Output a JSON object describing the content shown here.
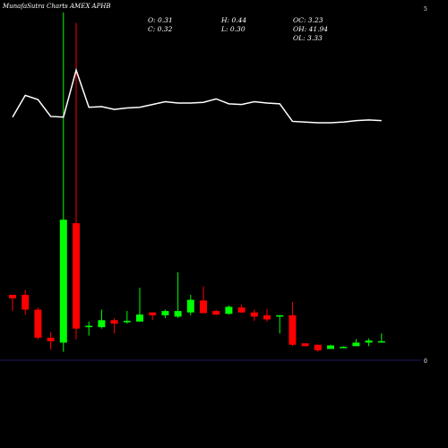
{
  "header": {
    "title": "MunafaSutra Charts AMEX APHB",
    "open": "O: 0.31",
    "close": "C: 0.32",
    "high": "H: 0.44",
    "low": "L: 0.30",
    "oc": "OC: 3.23",
    "oh": "OH: 41.94",
    "ol": "OL: 3.33"
  },
  "colors": {
    "background": "#000000",
    "up": "#00ff00",
    "down": "#ff0000",
    "line": "#ffffff",
    "axis": "#1a1a66"
  },
  "chart_data": {
    "type": "candlestick",
    "ylim": [
      0,
      5
    ],
    "yticks": [
      "5",
      "0"
    ],
    "candles": [
      {
        "dir": "down",
        "open": 0.93,
        "close": 0.88,
        "high": 0.93,
        "low": 0.7
      },
      {
        "dir": "down",
        "open": 0.93,
        "close": 0.72,
        "high": 1.0,
        "low": 0.65
      },
      {
        "dir": "down",
        "open": 0.72,
        "close": 0.32,
        "high": 0.75,
        "low": 0.3
      },
      {
        "dir": "down",
        "open": 0.32,
        "close": 0.27,
        "high": 0.4,
        "low": 0.15
      },
      {
        "dir": "up",
        "open": 0.25,
        "close": 2.0,
        "high": 4.95,
        "low": 0.12
      },
      {
        "dir": "down",
        "open": 1.95,
        "close": 0.45,
        "high": 4.8,
        "low": 0.3
      },
      {
        "dir": "up",
        "open": 0.47,
        "close": 0.49,
        "high": 0.55,
        "low": 0.35
      },
      {
        "dir": "up",
        "open": 0.47,
        "close": 0.57,
        "high": 0.72,
        "low": 0.45
      },
      {
        "dir": "down",
        "open": 0.57,
        "close": 0.52,
        "high": 0.6,
        "low": 0.38
      },
      {
        "dir": "up",
        "open": 0.54,
        "close": 0.56,
        "high": 0.7,
        "low": 0.52
      },
      {
        "dir": "up",
        "open": 0.55,
        "close": 0.65,
        "high": 1.03,
        "low": 0.55
      },
      {
        "dir": "down",
        "open": 0.68,
        "close": 0.64,
        "high": 0.68,
        "low": 0.57
      },
      {
        "dir": "up",
        "open": 0.64,
        "close": 0.7,
        "high": 0.72,
        "low": 0.6
      },
      {
        "dir": "up",
        "open": 0.62,
        "close": 0.7,
        "high": 1.25,
        "low": 0.6
      },
      {
        "dir": "up",
        "open": 0.68,
        "close": 0.86,
        "high": 0.93,
        "low": 0.64
      },
      {
        "dir": "down",
        "open": 0.85,
        "close": 0.67,
        "high": 1.05,
        "low": 0.67
      },
      {
        "dir": "down",
        "open": 0.7,
        "close": 0.65,
        "high": 0.72,
        "low": 0.64
      },
      {
        "dir": "up",
        "open": 0.66,
        "close": 0.76,
        "high": 0.78,
        "low": 0.65
      },
      {
        "dir": "down",
        "open": 0.75,
        "close": 0.68,
        "high": 0.79,
        "low": 0.67
      },
      {
        "dir": "down",
        "open": 0.68,
        "close": 0.62,
        "high": 0.72,
        "low": 0.56
      },
      {
        "dir": "down",
        "open": 0.64,
        "close": 0.58,
        "high": 0.73,
        "low": 0.55
      },
      {
        "dir": "up",
        "open": 0.62,
        "close": 0.64,
        "high": 0.64,
        "low": 0.38
      },
      {
        "dir": "down",
        "open": 0.64,
        "close": 0.22,
        "high": 0.83,
        "low": 0.2
      },
      {
        "dir": "down",
        "open": 0.24,
        "close": 0.2,
        "high": 0.24,
        "low": 0.2
      },
      {
        "dir": "down",
        "open": 0.22,
        "close": 0.14,
        "high": 0.22,
        "low": 0.12
      },
      {
        "dir": "up",
        "open": 0.16,
        "close": 0.21,
        "high": 0.22,
        "low": 0.16
      },
      {
        "dir": "up",
        "open": 0.19,
        "close": 0.19,
        "high": 0.2,
        "low": 0.18
      },
      {
        "dir": "up",
        "open": 0.2,
        "close": 0.25,
        "high": 0.3,
        "low": 0.2
      },
      {
        "dir": "up",
        "open": 0.25,
        "close": 0.28,
        "high": 0.31,
        "low": 0.2
      },
      {
        "dir": "up",
        "open": 0.26,
        "close": 0.27,
        "high": 0.38,
        "low": 0.25
      }
    ],
    "line_series": [
      3.46,
      3.77,
      3.71,
      3.47,
      3.46,
      4.13,
      3.6,
      3.61,
      3.57,
      3.59,
      3.6,
      3.64,
      3.68,
      3.66,
      3.66,
      3.67,
      3.72,
      3.65,
      3.64,
      3.68,
      3.66,
      3.65,
      3.4,
      3.39,
      3.38,
      3.38,
      3.39,
      3.41,
      3.42,
      3.41
    ],
    "line_note": "overlay on separate scale"
  }
}
